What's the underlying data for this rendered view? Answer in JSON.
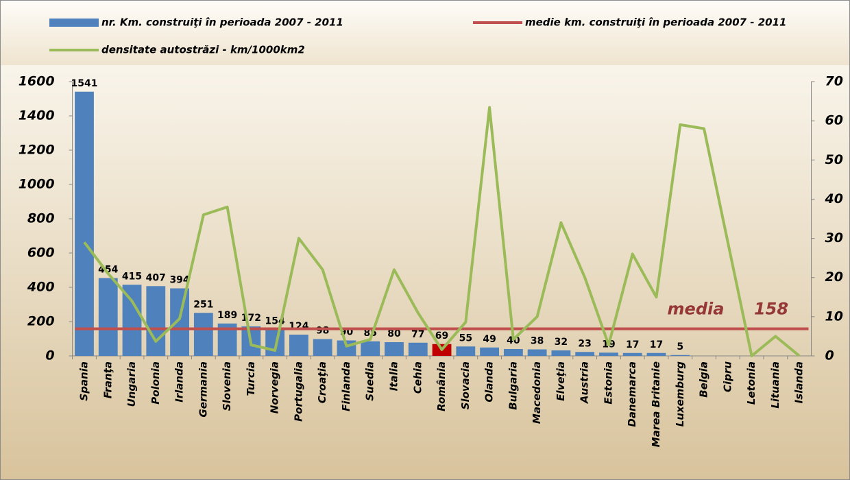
{
  "chart_data": {
    "type": "bar",
    "categories": [
      "Spania",
      "Franţa",
      "Ungaria",
      "Polonia",
      "Irlanda",
      "Germania",
      "Slovenia",
      "Turcia",
      "Norvegia",
      "Portugalia",
      "Croaţia",
      "Finlanda",
      "Suedia",
      "Italia",
      "Cehia",
      "România",
      "Slovacia",
      "Olanda",
      "Bulgaria",
      "Macedonia",
      "Elveţia",
      "Austria",
      "Estonia",
      "Danemarca",
      "Marea Britanie",
      "Luxemburg",
      "Belgia",
      "Cipru",
      "Letonia",
      "Lituania",
      "Islanda"
    ],
    "series": [
      {
        "name": "nr. Km. construiţi în perioada 2007 - 2011",
        "type": "bar",
        "axis": "y",
        "color": "#4f81bd",
        "colors": [
          "#4f81bd",
          "#4f81bd",
          "#4f81bd",
          "#4f81bd",
          "#4f81bd",
          "#4f81bd",
          "#4f81bd",
          "#4f81bd",
          "#4f81bd",
          "#4f81bd",
          "#4f81bd",
          "#4f81bd",
          "#4f81bd",
          "#4f81bd",
          "#4f81bd",
          "#c00000",
          "#4f81bd",
          "#4f81bd",
          "#4f81bd",
          "#4f81bd",
          "#4f81bd",
          "#4f81bd",
          "#4f81bd",
          "#4f81bd",
          "#4f81bd",
          "#4f81bd",
          "#4f81bd",
          "#4f81bd",
          "#4f81bd",
          "#4f81bd",
          "#4f81bd"
        ],
        "values": [
          1541,
          454,
          415,
          407,
          394,
          251,
          189,
          172,
          154,
          124,
          98,
          90,
          85,
          80,
          77,
          69,
          55,
          49,
          40,
          38,
          32,
          23,
          19,
          17,
          17,
          5,
          null,
          null,
          null,
          null,
          null
        ]
      },
      {
        "name": "medie km. construiţi în perioada 2007 - 2011",
        "type": "hline",
        "axis": "y",
        "color": "#c0504d",
        "value": 158
      },
      {
        "name": "densitate autostrăzi - km/1000km2",
        "type": "line",
        "axis": "y2",
        "color": "#9bbb59",
        "values": [
          29,
          21,
          14,
          3.7,
          9.5,
          36,
          38,
          2.8,
          1.4,
          30,
          22,
          2.5,
          4.2,
          22,
          11,
          1.6,
          8.6,
          63.4,
          4.2,
          10,
          34,
          20,
          2.8,
          26,
          15,
          59,
          58,
          29,
          0,
          5,
          0
        ]
      }
    ],
    "annotations": [
      {
        "text": "media",
        "color": "#953735"
      }
    ],
    "ylim": [
      0,
      1600
    ],
    "yticks": [
      0,
      200,
      400,
      600,
      800,
      1000,
      1200,
      1400,
      1600
    ],
    "y2lim": [
      0,
      70
    ],
    "y2ticks": [
      0,
      10,
      20,
      30,
      40,
      50,
      60,
      70
    ],
    "grid": false,
    "legend": "top"
  }
}
